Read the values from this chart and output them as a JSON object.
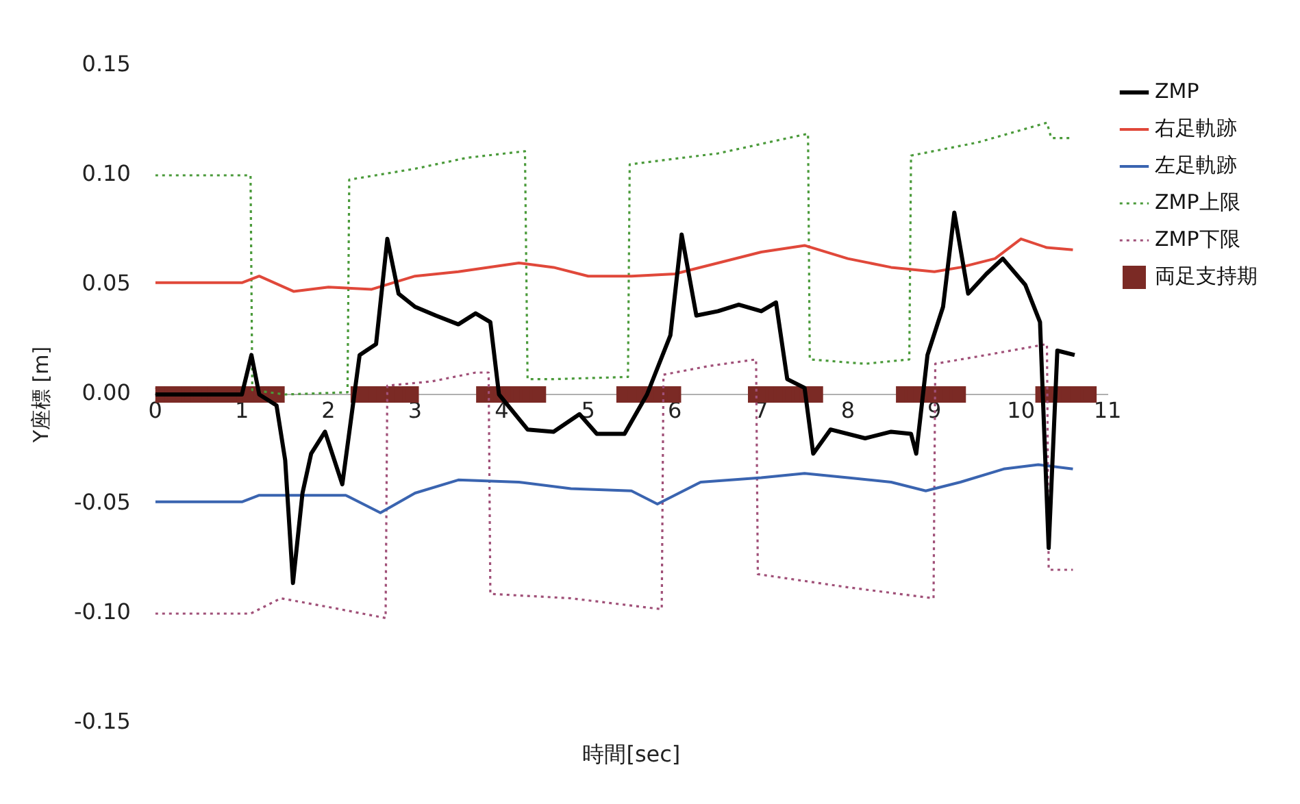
{
  "chart_data": {
    "type": "line",
    "xlabel": "時間[sec]",
    "ylabel": "Y座標 [m]",
    "xlim": [
      0,
      11
    ],
    "xticks": [
      0,
      1,
      2,
      3,
      4,
      5,
      6,
      7,
      8,
      9,
      10,
      11
    ],
    "ylim": [
      -0.15,
      0.15
    ],
    "yticks": [
      -0.15,
      {
        "value": -0.1,
        "label": "-0.10"
      },
      -0.05,
      {
        "value": 0,
        "label": "0.00"
      },
      0.05,
      {
        "value": 0.1,
        "label": "0.10"
      },
      0.15
    ],
    "grid": false,
    "legend": "right",
    "series": [
      {
        "name": "ZMP",
        "color": "#000000",
        "line_style": "solid",
        "marker": "none",
        "x": [
          0,
          0.5,
          1.0,
          1.11,
          1.2,
          1.4,
          1.5,
          1.59,
          1.7,
          1.8,
          1.96,
          2.16,
          2.36,
          2.55,
          2.68,
          2.81,
          3.0,
          3.24,
          3.5,
          3.7,
          3.87,
          3.97,
          4.3,
          4.6,
          4.9,
          5.1,
          5.42,
          5.68,
          5.95,
          6.08,
          6.25,
          6.5,
          6.74,
          7.0,
          7.17,
          7.3,
          7.5,
          7.6,
          7.8,
          8.2,
          8.5,
          8.73,
          8.79,
          8.92,
          9.1,
          9.23,
          9.39,
          9.6,
          9.79,
          10.05,
          10.22,
          10.32,
          10.42,
          10.62
        ],
        "values": [
          0,
          0,
          0,
          0.018,
          0,
          -0.005,
          -0.03,
          -0.086,
          -0.045,
          -0.027,
          -0.017,
          -0.041,
          0.018,
          0.023,
          0.071,
          0.046,
          0.04,
          0.036,
          0.032,
          0.037,
          0.033,
          0,
          -0.016,
          -0.017,
          -0.009,
          -0.018,
          -0.018,
          0,
          0.027,
          0.073,
          0.036,
          0.038,
          0.041,
          0.038,
          0.042,
          0.007,
          0.003,
          -0.027,
          -0.016,
          -0.02,
          -0.017,
          -0.018,
          -0.027,
          0.018,
          0.04,
          0.083,
          0.046,
          0.055,
          0.062,
          0.05,
          0.033,
          -0.07,
          0.02,
          0.018
        ]
      },
      {
        "name": "右足軌跡",
        "color": "#e0483a",
        "line_style": "solid",
        "marker": "none",
        "x": [
          0,
          1.0,
          1.2,
          1.6,
          2.0,
          2.5,
          3.0,
          3.5,
          4.2,
          4.6,
          5.0,
          5.5,
          6.0,
          6.5,
          7.0,
          7.5,
          8.0,
          8.5,
          9.0,
          9.3,
          9.7,
          10.0,
          10.3,
          10.6
        ],
        "values": [
          0.051,
          0.051,
          0.054,
          0.047,
          0.049,
          0.048,
          0.054,
          0.056,
          0.06,
          0.058,
          0.054,
          0.054,
          0.055,
          0.06,
          0.065,
          0.068,
          0.062,
          0.058,
          0.056,
          0.058,
          0.062,
          0.071,
          0.067,
          0.066
        ]
      },
      {
        "name": "左足軌跡",
        "color": "#3a64b0",
        "line_style": "solid",
        "marker": "none",
        "x": [
          0,
          1.0,
          1.2,
          2.2,
          2.6,
          3.0,
          3.5,
          4.2,
          4.8,
          5.5,
          5.8,
          6.3,
          7.0,
          7.5,
          8.0,
          8.5,
          8.9,
          9.3,
          9.8,
          10.2,
          10.6
        ],
        "values": [
          -0.049,
          -0.049,
          -0.046,
          -0.046,
          -0.054,
          -0.045,
          -0.039,
          -0.04,
          -0.043,
          -0.044,
          -0.05,
          -0.04,
          -0.038,
          -0.036,
          -0.038,
          -0.04,
          -0.044,
          -0.04,
          -0.034,
          -0.032,
          -0.034
        ]
      },
      {
        "name": "ZMP上限",
        "color": "#4a9a3a",
        "line_style": "dotted",
        "marker": "none",
        "x": [
          0,
          1.1,
          1.12,
          1.5,
          2.22,
          2.24,
          3.0,
          3.6,
          4.27,
          4.3,
          4.6,
          5.46,
          5.48,
          6.5,
          7.54,
          7.56,
          8.2,
          8.71,
          8.73,
          9.5,
          10.3,
          10.35,
          10.6
        ],
        "values": [
          0.1,
          0.1,
          0.002,
          0.0,
          0.001,
          0.098,
          0.103,
          0.108,
          0.111,
          0.007,
          0.007,
          0.008,
          0.105,
          0.11,
          0.119,
          0.016,
          0.014,
          0.016,
          0.109,
          0.115,
          0.124,
          0.117,
          0.117
        ]
      },
      {
        "name": "ZMP下限",
        "color": "#a05078",
        "line_style": "dotted",
        "marker": "none",
        "x": [
          0,
          1.1,
          1.45,
          2.0,
          2.66,
          2.68,
          3.2,
          3.7,
          3.85,
          3.87,
          4.8,
          5.85,
          5.87,
          6.4,
          6.94,
          6.96,
          8.0,
          8.99,
          9.01,
          9.6,
          10.3,
          10.32,
          10.6
        ],
        "values": [
          -0.1,
          -0.1,
          -0.093,
          -0.097,
          -0.102,
          0.004,
          0.006,
          0.01,
          0.01,
          -0.091,
          -0.093,
          -0.098,
          0.009,
          0.013,
          0.016,
          -0.082,
          -0.088,
          -0.093,
          0.014,
          0.018,
          0.023,
          -0.08,
          -0.08
        ]
      },
      {
        "name": "両足支持期",
        "color": "#7b2a25",
        "line_style": "solid",
        "marker": "square",
        "x": [
          0,
          0.1,
          0.2,
          0.3,
          0.4,
          0.5,
          0.6,
          0.7,
          0.8,
          0.9,
          1.0,
          1.1,
          1.2,
          1.3,
          1.4,
          1.9,
          2.35,
          2.45,
          2.55,
          2.65,
          2.75,
          2.85,
          2.95,
          3.4,
          3.8,
          3.9,
          4.0,
          4.1,
          4.2,
          4.3,
          4.42,
          4.9,
          5.42,
          5.52,
          5.62,
          5.72,
          5.82,
          5.92,
          5.98,
          6.5,
          6.94,
          7.04,
          7.14,
          7.24,
          7.34,
          7.44,
          7.54,
          7.62,
          8.1,
          8.65,
          8.75,
          8.85,
          8.95,
          9.05,
          9.15,
          9.27,
          9.8,
          10.26,
          10.36,
          10.46,
          10.56,
          10.66,
          10.78
        ],
        "values": [
          0,
          0,
          0,
          0,
          0,
          0,
          0,
          0,
          0,
          0,
          0,
          0,
          0,
          0,
          0,
          null,
          0,
          0,
          0,
          0,
          0,
          0,
          0,
          null,
          0,
          0,
          0,
          0,
          0,
          0,
          0,
          null,
          0,
          0,
          0,
          0,
          0,
          0,
          0,
          null,
          0,
          0,
          0,
          0,
          0,
          0,
          0,
          0,
          null,
          0,
          0,
          0,
          0,
          0,
          0,
          0,
          null,
          0,
          0,
          0,
          0,
          0,
          0
        ]
      }
    ]
  }
}
